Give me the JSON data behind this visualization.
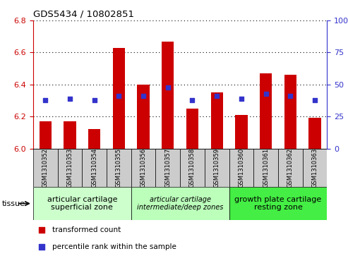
{
  "title": "GDS5434 / 10802851",
  "samples": [
    "GSM1310352",
    "GSM1310353",
    "GSM1310354",
    "GSM1310355",
    "GSM1310356",
    "GSM1310357",
    "GSM1310358",
    "GSM1310359",
    "GSM1310360",
    "GSM1310361",
    "GSM1310362",
    "GSM1310363"
  ],
  "bar_values": [
    6.17,
    6.17,
    6.12,
    6.63,
    6.4,
    6.67,
    6.25,
    6.35,
    6.21,
    6.47,
    6.46,
    6.19
  ],
  "percentile_values": [
    6.3,
    6.31,
    6.3,
    6.33,
    6.33,
    6.38,
    6.3,
    6.33,
    6.31,
    6.34,
    6.33,
    6.3
  ],
  "bar_color": "#cc0000",
  "percentile_color": "#3333cc",
  "ymin": 6.0,
  "ymax": 6.8,
  "y2min": 0,
  "y2max": 100,
  "yticks": [
    6.0,
    6.2,
    6.4,
    6.6,
    6.8
  ],
  "y2ticks": [
    0,
    25,
    50,
    75,
    100
  ],
  "groups": [
    {
      "label": "articular cartilage\nsuperficial zone",
      "start": 0,
      "end": 4,
      "color": "#ccffcc",
      "fontsize": 8,
      "fontstyle": "normal"
    },
    {
      "label": "articular cartilage\nintermediate/deep zones",
      "start": 4,
      "end": 8,
      "color": "#bbffbb",
      "fontsize": 7,
      "fontstyle": "italic"
    },
    {
      "label": "growth plate cartilage\nresting zone",
      "start": 8,
      "end": 12,
      "color": "#44ee44",
      "fontsize": 8,
      "fontstyle": "normal"
    }
  ],
  "legend_items": [
    {
      "label": "transformed count",
      "color": "#cc0000",
      "marker": "s"
    },
    {
      "label": "percentile rank within the sample",
      "color": "#3333cc",
      "marker": "s"
    }
  ],
  "tissue_label": "tissue",
  "tick_bg_color": "#cccccc",
  "bar_width": 0.5,
  "grid_color": "#000000",
  "left_axis_color": "#cc0000",
  "right_axis_color": "#3333cc"
}
